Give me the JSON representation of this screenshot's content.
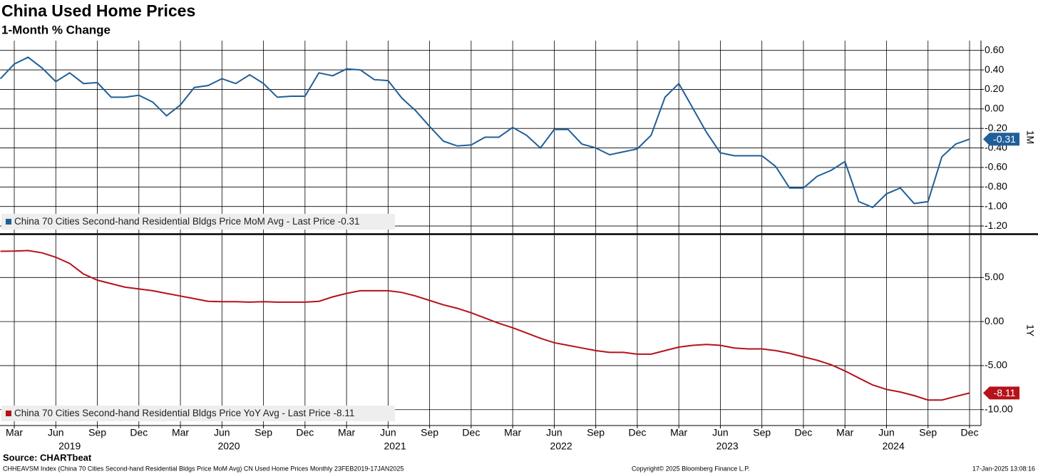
{
  "chart_data": [
    {
      "type": "line",
      "title": "China Used Home Prices",
      "subtitle": "1-Month % Change",
      "axis_label": "1M",
      "last_price_text": "- Last Price",
      "x": [
        "2019-02",
        "2019-03",
        "2019-04",
        "2019-05",
        "2019-06",
        "2019-07",
        "2019-08",
        "2019-09",
        "2019-10",
        "2019-11",
        "2019-12",
        "2020-01",
        "2020-02",
        "2020-03",
        "2020-04",
        "2020-05",
        "2020-06",
        "2020-07",
        "2020-08",
        "2020-09",
        "2020-10",
        "2020-11",
        "2020-12",
        "2021-01",
        "2021-02",
        "2021-03",
        "2021-04",
        "2021-05",
        "2021-06",
        "2021-07",
        "2021-08",
        "2021-09",
        "2021-10",
        "2021-11",
        "2021-12",
        "2022-01",
        "2022-02",
        "2022-03",
        "2022-04",
        "2022-05",
        "2022-06",
        "2022-07",
        "2022-08",
        "2022-09",
        "2022-10",
        "2022-11",
        "2022-12",
        "2023-01",
        "2023-02",
        "2023-03",
        "2023-04",
        "2023-05",
        "2023-06",
        "2023-07",
        "2023-08",
        "2023-09",
        "2023-10",
        "2023-11",
        "2023-12",
        "2024-01",
        "2024-02",
        "2024-03",
        "2024-04",
        "2024-05",
        "2024-06",
        "2024-07",
        "2024-08",
        "2024-09",
        "2024-10",
        "2024-11",
        "2024-12"
      ],
      "series": [
        {
          "name": "China 70 Cities Second-hand Residential Bldgs Price MoM Avg",
          "color": "#1f5f99",
          "values": [
            0.31,
            0.46,
            0.53,
            0.42,
            0.28,
            0.37,
            0.26,
            0.27,
            0.12,
            0.12,
            0.14,
            0.07,
            -0.07,
            0.04,
            0.22,
            0.24,
            0.31,
            0.26,
            0.35,
            0.26,
            0.12,
            0.13,
            0.13,
            0.37,
            0.34,
            0.41,
            0.4,
            0.3,
            0.29,
            0.11,
            -0.02,
            -0.18,
            -0.33,
            -0.38,
            -0.37,
            -0.29,
            -0.29,
            -0.19,
            -0.27,
            -0.4,
            -0.21,
            -0.21,
            -0.36,
            -0.4,
            -0.47,
            -0.44,
            -0.41,
            -0.27,
            0.12,
            0.26,
            0.01,
            -0.24,
            -0.45,
            -0.48,
            -0.48,
            -0.48,
            -0.59,
            -0.81,
            -0.81,
            -0.69,
            -0.63,
            -0.54,
            -0.95,
            -1.01,
            -0.87,
            -0.81,
            -0.97,
            -0.95,
            -0.49,
            -0.36,
            -0.31
          ]
        }
      ],
      "ylim": [
        -1.28,
        0.7
      ],
      "yticks": [
        {
          "value": 0.6,
          "label": "0.60"
        },
        {
          "value": 0.4,
          "label": "0.40"
        },
        {
          "value": 0.2,
          "label": "0.20"
        },
        {
          "value": 0,
          "label": "0.00"
        },
        {
          "value": -0.2,
          "label": "-0.20"
        },
        {
          "value": -0.4,
          "label": "-0.40"
        },
        {
          "value": -0.6,
          "label": "-0.60"
        },
        {
          "value": -0.8,
          "label": "-0.80"
        },
        {
          "value": -1,
          "label": "-1.00"
        },
        {
          "value": -1.2,
          "label": "-1.20"
        }
      ],
      "grid": true
    },
    {
      "type": "line",
      "axis_label": "1Y",
      "last_price_text": "- Last Price",
      "x": [
        "2019-02",
        "2019-03",
        "2019-04",
        "2019-05",
        "2019-06",
        "2019-07",
        "2019-08",
        "2019-09",
        "2019-10",
        "2019-11",
        "2019-12",
        "2020-01",
        "2020-02",
        "2020-03",
        "2020-04",
        "2020-05",
        "2020-06",
        "2020-07",
        "2020-08",
        "2020-09",
        "2020-10",
        "2020-11",
        "2020-12",
        "2021-01",
        "2021-02",
        "2021-03",
        "2021-04",
        "2021-05",
        "2021-06",
        "2021-07",
        "2021-08",
        "2021-09",
        "2021-10",
        "2021-11",
        "2021-12",
        "2022-01",
        "2022-02",
        "2022-03",
        "2022-04",
        "2022-05",
        "2022-06",
        "2022-07",
        "2022-08",
        "2022-09",
        "2022-10",
        "2022-11",
        "2022-12",
        "2023-01",
        "2023-02",
        "2023-03",
        "2023-04",
        "2023-05",
        "2023-06",
        "2023-07",
        "2023-08",
        "2023-09",
        "2023-10",
        "2023-11",
        "2023-12",
        "2024-01",
        "2024-02",
        "2024-03",
        "2024-04",
        "2024-05",
        "2024-06",
        "2024-07",
        "2024-08",
        "2024-09",
        "2024-10",
        "2024-11",
        "2024-12"
      ],
      "series": [
        {
          "name": "China 70 Cities Second-hand Residential Bldgs Price YoY Avg",
          "color": "#b5121b",
          "values": [
            7.98,
            8.0,
            8.06,
            7.8,
            7.3,
            6.6,
            5.4,
            4.7,
            4.3,
            3.9,
            3.7,
            3.5,
            3.2,
            2.9,
            2.6,
            2.3,
            2.26,
            2.26,
            2.2,
            2.26,
            2.2,
            2.2,
            2.2,
            2.3,
            2.8,
            3.2,
            3.5,
            3.5,
            3.5,
            3.3,
            2.9,
            2.4,
            1.9,
            1.5,
            1.0,
            0.4,
            -0.2,
            -0.7,
            -1.3,
            -1.9,
            -2.4,
            -2.7,
            -3.0,
            -3.3,
            -3.5,
            -3.5,
            -3.7,
            -3.7,
            -3.3,
            -2.9,
            -2.7,
            -2.6,
            -2.7,
            -3.0,
            -3.1,
            -3.1,
            -3.3,
            -3.6,
            -4.0,
            -4.4,
            -4.9,
            -5.6,
            -6.4,
            -7.2,
            -7.7,
            -8.0,
            -8.4,
            -8.9,
            -8.9,
            -8.5,
            -8.11
          ]
        }
      ],
      "ylim": [
        -11.8,
        9.8
      ],
      "yticks": [
        {
          "value": 5,
          "label": "5.00"
        },
        {
          "value": 0,
          "label": "0.00"
        },
        {
          "value": -5,
          "label": "-5.00"
        },
        {
          "value": -10,
          "label": "-10.00"
        }
      ],
      "xticks": [
        {
          "value": "2019-03",
          "label": "Mar"
        },
        {
          "value": "2019-06",
          "label": "Jun"
        },
        {
          "value": "2019-09",
          "label": "Sep"
        },
        {
          "value": "2019-12",
          "label": "Dec"
        },
        {
          "value": "2020-03",
          "label": "Mar"
        },
        {
          "value": "2020-06",
          "label": "Jun"
        },
        {
          "value": "2020-09",
          "label": "Sep"
        },
        {
          "value": "2020-12",
          "label": "Dec"
        },
        {
          "value": "2021-03",
          "label": "Mar"
        },
        {
          "value": "2021-06",
          "label": "Jun"
        },
        {
          "value": "2021-09",
          "label": "Sep"
        },
        {
          "value": "2021-12",
          "label": "Dec"
        },
        {
          "value": "2022-03",
          "label": "Mar"
        },
        {
          "value": "2022-06",
          "label": "Jun"
        },
        {
          "value": "2022-09",
          "label": "Sep"
        },
        {
          "value": "2022-12",
          "label": "Dec"
        },
        {
          "value": "2023-03",
          "label": "Mar"
        },
        {
          "value": "2023-06",
          "label": "Jun"
        },
        {
          "value": "2023-09",
          "label": "Sep"
        },
        {
          "value": "2023-12",
          "label": "Dec"
        },
        {
          "value": "2024-03",
          "label": "Mar"
        },
        {
          "value": "2024-06",
          "label": "Jun"
        },
        {
          "value": "2024-09",
          "label": "Sep"
        },
        {
          "value": "2024-12",
          "label": "Dec"
        }
      ],
      "year_labels": [
        "2019",
        "2020",
        "2021",
        "2022",
        "2023",
        "2024"
      ],
      "grid": true
    }
  ],
  "footer": {
    "source": "Source: CHARTbeat",
    "ticker": "CHHEAVSM Index (China 70 Cities  Second-hand Residential Bldgs Price MoM Avg) CN Used Home Prices  Monthly 23FEB2019-17JAN2025",
    "copyright": "Copyright© 2025 Bloomberg Finance L.P.",
    "timestamp": "17-Jan-2025 13:08:16"
  }
}
